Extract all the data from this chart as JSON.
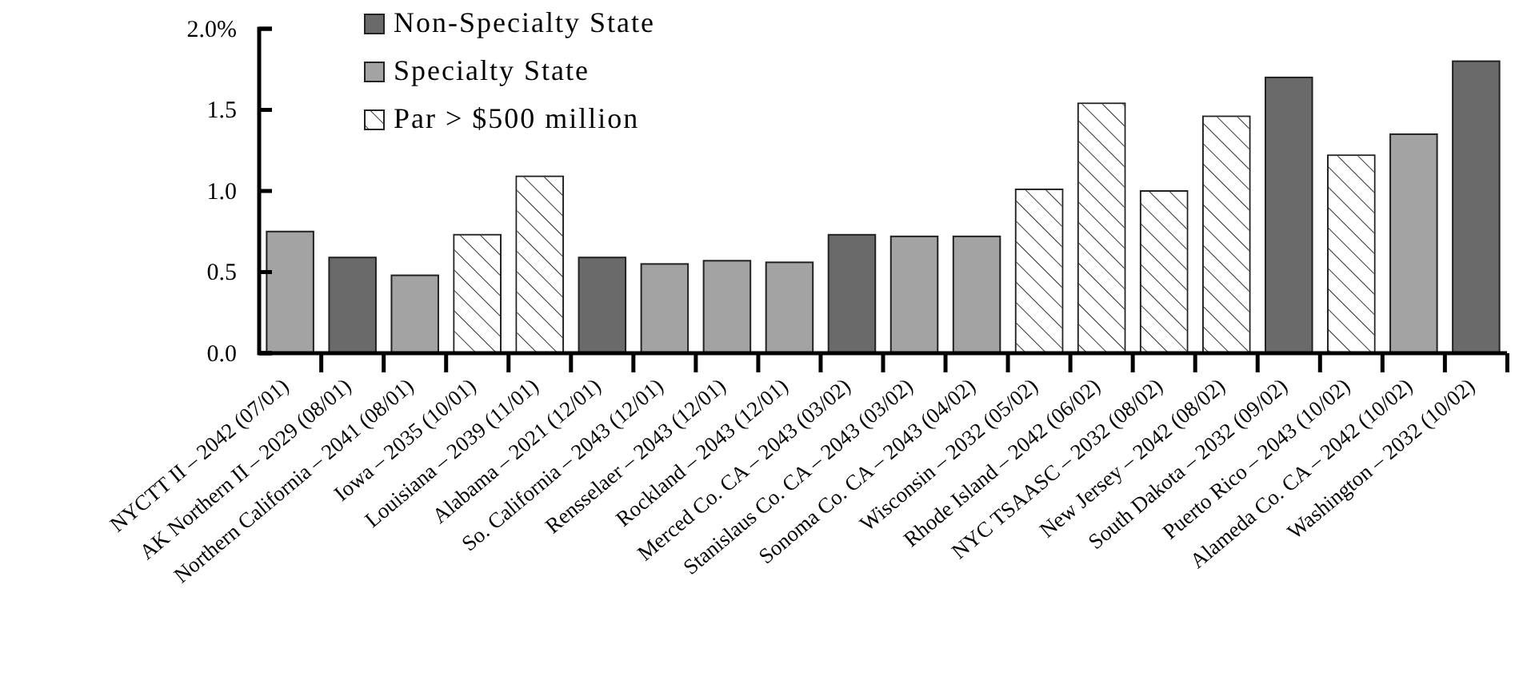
{
  "chart_data": {
    "type": "bar",
    "categories": [
      "NYCTT II – 2042 (07/01)",
      "AK Northern II – 2029 (08/01)",
      "Northern California – 2041 (08/01)",
      "Iowa – 2035 (10/01)",
      "Louisiana – 2039 (11/01)",
      "Alabama – 2021 (12/01)",
      "So. California – 2043 (12/01)",
      "Rensselaer – 2043 (12/01)",
      "Rockland – 2043 (12/01)",
      "Merced Co. CA – 2043 (03/02)",
      "Stanislaus Co. CA – 2043 (03/02)",
      "Sonoma Co. CA – 2043 (04/02)",
      "Wisconsin – 2032 (05/02)",
      "Rhode Island – 2042 (06/02)",
      "NYC TSAASC – 2032 (08/02)",
      "New Jersey – 2042 (08/02)",
      "South Dakota – 2032 (09/02)",
      "Puerto Rico – 2043 (10/02)",
      "Alameda Co. CA – 2042 (10/02)",
      "Washington – 2032 (10/02)"
    ],
    "series": [
      {
        "name": "Non-Specialty State",
        "color": "#6a6a6a",
        "values": [
          null,
          0.59,
          null,
          null,
          null,
          0.59,
          null,
          null,
          null,
          0.73,
          null,
          null,
          null,
          null,
          null,
          null,
          1.7,
          null,
          null,
          1.8
        ]
      },
      {
        "name": "Specialty State",
        "color": "#a3a3a3",
        "values": [
          0.75,
          null,
          0.48,
          null,
          null,
          null,
          0.55,
          0.57,
          0.56,
          null,
          0.72,
          0.72,
          null,
          null,
          null,
          null,
          null,
          null,
          1.35,
          null
        ]
      },
      {
        "name": "Par > $500 million",
        "color": "#ffffff",
        "values": [
          null,
          null,
          null,
          0.73,
          1.09,
          null,
          null,
          null,
          null,
          null,
          null,
          null,
          1.01,
          1.54,
          1.0,
          1.46,
          null,
          1.22,
          null,
          null
        ]
      }
    ],
    "ylim": [
      0,
      2
    ],
    "yticks": [
      {
        "value": 0,
        "label": "0.0"
      },
      {
        "value": 0.5,
        "label": "0.5"
      },
      {
        "value": 1,
        "label": "1.0"
      },
      {
        "value": 1.5,
        "label": "1.5"
      },
      {
        "value": 2,
        "label": "2.0%"
      }
    ],
    "grid": false,
    "legend": "top"
  }
}
